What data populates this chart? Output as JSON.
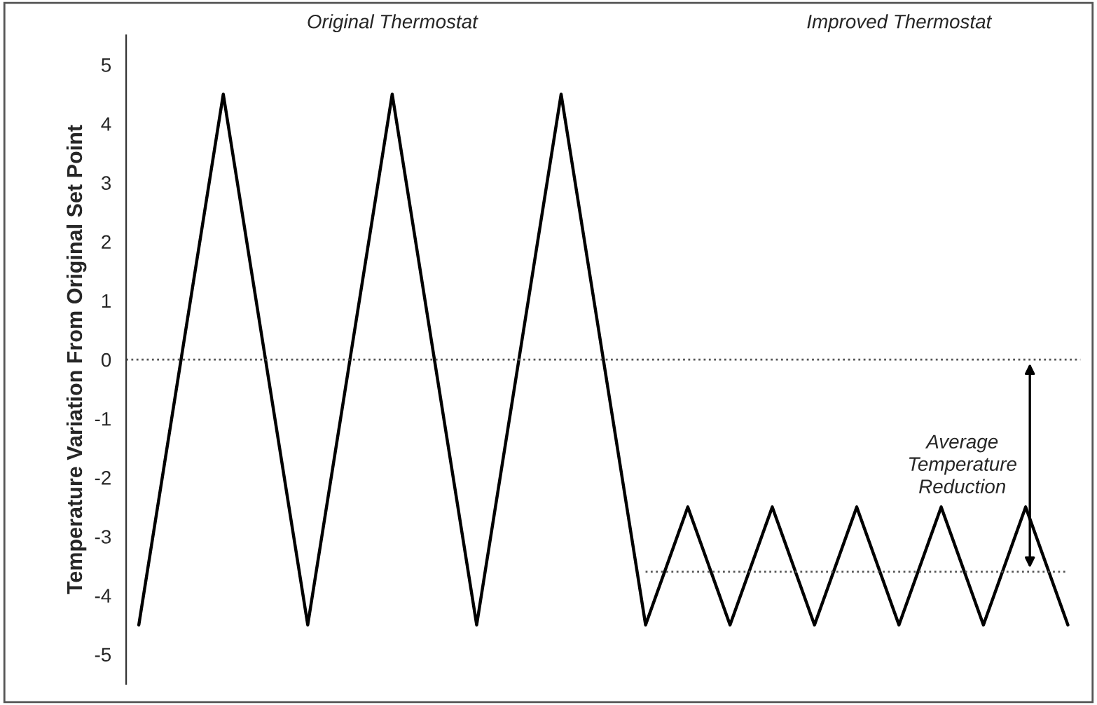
{
  "chart_data": {
    "type": "line",
    "ylabel": "Temperature Variation From Original Set Point",
    "categories": [
      null,
      null,
      null,
      null,
      null,
      null,
      null,
      null,
      null,
      null,
      null,
      null,
      null,
      null,
      null,
      null,
      null,
      null,
      null,
      null,
      null,
      null,
      null
    ],
    "series": [
      {
        "color": "#000000",
        "line_style": "solid",
        "values": [
          -4.5,
          0,
          4.5,
          0,
          -4.5,
          0,
          4.5,
          0,
          -4.5,
          0,
          4.5,
          0,
          -4.5,
          -2.5,
          -4.5,
          -2.5,
          -4.5,
          -2.5,
          -4.5,
          -2.5,
          -4.5,
          -2.5,
          -4.5
        ]
      },
      {
        "color": "#555555",
        "line_style": "dotted",
        "values": [
          null,
          null,
          null,
          null,
          null,
          null,
          null,
          null,
          null,
          null,
          null,
          null,
          -3.6,
          -3.6,
          -3.6,
          -3.6,
          -3.6,
          -3.6,
          -3.6,
          -3.6,
          -3.6,
          -3.6,
          -3.6
        ]
      }
    ],
    "ylim": [
      -5.5,
      5.5
    ],
    "yticks": [
      -5,
      -4,
      -3,
      -2,
      -1,
      0,
      1,
      2,
      3,
      4,
      5
    ],
    "ref_lines": [
      {
        "axis": "y",
        "value": 0,
        "color": "#555555",
        "line_style": "dotted"
      }
    ],
    "annotations": [
      "Original Thermostat",
      "Improved Thermostat",
      "Average\nTemperature\nReduction"
    ],
    "grid": false,
    "legend": false,
    "marker": "none"
  }
}
